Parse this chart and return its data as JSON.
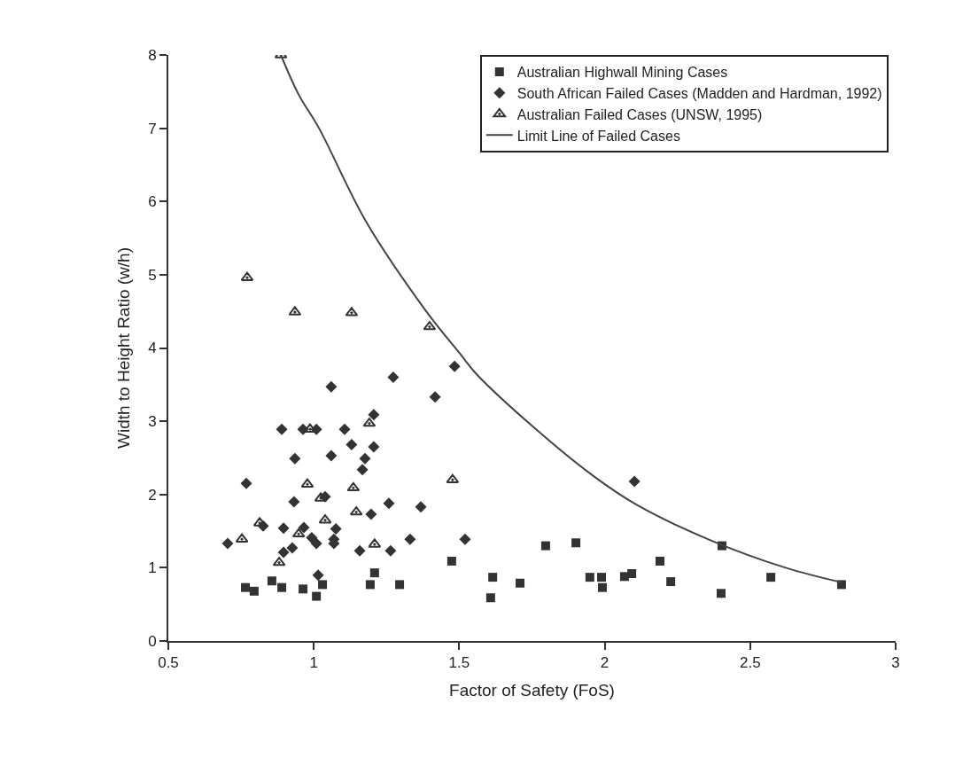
{
  "chart_data": {
    "type": "scatter",
    "xlabel": "Factor of Safety (FoS)",
    "ylabel": "Width to Height Ratio (w/h)",
    "xlim": [
      0.5,
      3
    ],
    "xticks": [
      0.5,
      1,
      1.5,
      2,
      2.5,
      3
    ],
    "ylim": [
      0,
      8
    ],
    "yticks": [
      0,
      1,
      2,
      3,
      4,
      5,
      6,
      7,
      8
    ],
    "grid": false,
    "legend": "top right",
    "series": [
      {
        "name": "Australian Highwall Mining Cases",
        "color": "#333333",
        "marker": "square",
        "x": [
          0.765,
          0.795,
          0.856,
          0.89,
          0.963,
          1.009,
          1.03,
          1.194,
          1.209,
          1.295,
          1.474,
          1.608,
          1.615,
          1.709,
          1.797,
          1.901,
          1.949,
          1.989,
          1.992,
          2.068,
          2.093,
          2.19,
          2.227,
          2.403,
          2.4,
          2.571,
          2.814
        ],
        "values": [
          0.73,
          0.68,
          0.82,
          0.73,
          0.71,
          0.61,
          0.77,
          0.77,
          0.93,
          0.77,
          1.09,
          0.59,
          0.87,
          0.79,
          1.3,
          1.34,
          0.87,
          0.87,
          0.73,
          0.88,
          0.92,
          1.09,
          0.81,
          1.3,
          0.65,
          0.87,
          0.77
        ]
      },
      {
        "name": "South African Failed Cases (Madden and Hardman, 1992)",
        "color": "#333333",
        "marker": "diamond",
        "x": [
          1.484,
          1.273,
          1.06,
          1.417,
          1.206,
          0.89,
          0.963,
          1.009,
          1.106,
          1.13,
          1.206,
          1.06,
          0.935,
          1.176,
          1.167,
          0.768,
          1.039,
          0.932,
          1.258,
          1.368,
          1.197,
          0.826,
          0.896,
          0.966,
          1.076,
          0.993,
          1.009,
          1.069,
          1.069,
          0.704,
          0.926,
          0.896,
          1.158,
          1.264,
          1.331,
          1.52,
          1.015,
          2.102
        ],
        "values": [
          3.75,
          3.6,
          3.47,
          3.33,
          3.09,
          2.89,
          2.89,
          2.89,
          2.89,
          2.68,
          2.65,
          2.53,
          2.49,
          2.49,
          2.34,
          2.15,
          1.97,
          1.9,
          1.88,
          1.83,
          1.73,
          1.57,
          1.54,
          1.55,
          1.53,
          1.41,
          1.33,
          1.39,
          1.33,
          1.33,
          1.27,
          1.21,
          1.23,
          1.23,
          1.39,
          1.39,
          0.9,
          2.18
        ]
      },
      {
        "name": "Australian Failed Cases (UNSW, 1995)",
        "color": "#333333",
        "marker": "triangle",
        "x": [
          0.887,
          0.771,
          0.935,
          1.13,
          1.398,
          0.987,
          1.191,
          0.978,
          1.136,
          1.477,
          1.024,
          1.146,
          1.039,
          0.814,
          0.948,
          0.753,
          1.209,
          0.881
        ],
        "values": [
          8.0,
          4.96,
          4.49,
          4.48,
          4.29,
          2.89,
          2.97,
          2.14,
          2.09,
          2.2,
          1.95,
          1.76,
          1.65,
          1.61,
          1.46,
          1.39,
          1.32,
          1.07
        ]
      },
      {
        "name": "Limit Line of Failed Cases",
        "type": "line",
        "color": "#444444",
        "marker": "none",
        "line_style": "solid",
        "x": [
          0.887,
          0.948,
          1.018,
          1.179,
          1.383,
          1.505,
          1.56,
          1.758,
          1.962,
          2.114,
          2.367,
          2.622,
          2.814
        ],
        "values": [
          8.0,
          7.46,
          7.0,
          5.73,
          4.52,
          3.91,
          3.64,
          2.91,
          2.25,
          1.85,
          1.37,
          1.0,
          0.8
        ]
      }
    ]
  }
}
